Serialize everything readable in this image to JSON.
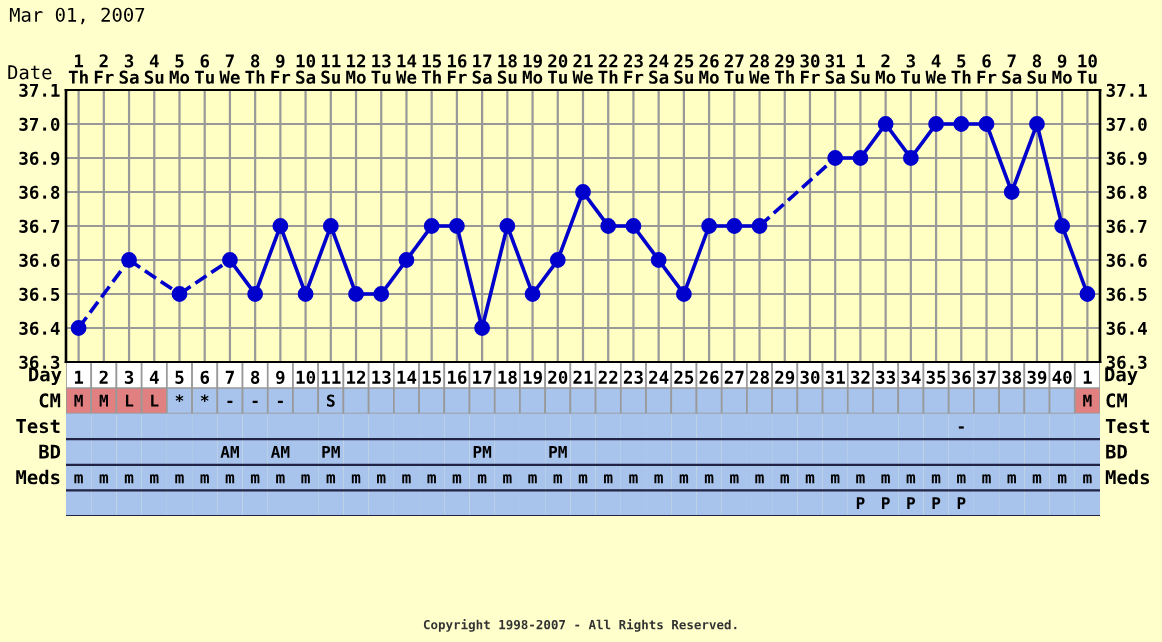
{
  "chart_data": [
    {
      "type": "line",
      "title": "Mar 01, 2007",
      "xlabel": "Day",
      "x2label": "Date",
      "categories": [
        "1",
        "2",
        "3",
        "4",
        "5",
        "6",
        "7",
        "8",
        "9",
        "10",
        "11",
        "12",
        "13",
        "14",
        "15",
        "16",
        "17",
        "18",
        "19",
        "20",
        "21",
        "22",
        "23",
        "24",
        "25",
        "26",
        "27",
        "28",
        "29",
        "30",
        "31",
        "32",
        "33",
        "34",
        "35",
        "36",
        "37",
        "38",
        "39",
        "40",
        "1"
      ],
      "x2lim": [
        "2007-02-28T12:00",
        "2007-04-10T12:00"
      ],
      "x2ticks": [
        {
          "value": "2007-03-01",
          "label": "1\nTh"
        },
        {
          "value": "2007-03-02",
          "label": "2\nFr"
        },
        {
          "value": "2007-03-03",
          "label": "3\nSa"
        },
        {
          "value": "2007-03-04",
          "label": "4\nSu"
        },
        {
          "value": "2007-03-05",
          "label": "5\nMo"
        },
        {
          "value": "2007-03-06",
          "label": "6\nTu"
        },
        {
          "value": "2007-03-07",
          "label": "7\nWe"
        },
        {
          "value": "2007-03-08",
          "label": "8\nTh"
        },
        {
          "value": "2007-03-09",
          "label": "9\nFr"
        },
        {
          "value": "2007-03-10",
          "label": "10\nSa"
        },
        {
          "value": "2007-03-11",
          "label": "11\nSu"
        },
        {
          "value": "2007-03-12",
          "label": "12\nMo"
        },
        {
          "value": "2007-03-13",
          "label": "13\nTu"
        },
        {
          "value": "2007-03-14",
          "label": "14\nWe"
        },
        {
          "value": "2007-03-15",
          "label": "15\nTh"
        },
        {
          "value": "2007-03-16",
          "label": "16\nFr"
        },
        {
          "value": "2007-03-17",
          "label": "17\nSa"
        },
        {
          "value": "2007-03-18",
          "label": "18\nSu"
        },
        {
          "value": "2007-03-19",
          "label": "19\nMo"
        },
        {
          "value": "2007-03-20",
          "label": "20\nTu"
        },
        {
          "value": "2007-03-21",
          "label": "21\nWe"
        },
        {
          "value": "2007-03-22",
          "label": "22\nTh"
        },
        {
          "value": "2007-03-23",
          "label": "23\nFr"
        },
        {
          "value": "2007-03-24",
          "label": "24\nSa"
        },
        {
          "value": "2007-03-25",
          "label": "25\nSu"
        },
        {
          "value": "2007-03-26",
          "label": "26\nMo"
        },
        {
          "value": "2007-03-27",
          "label": "27\nTu"
        },
        {
          "value": "2007-03-28",
          "label": "28\nWe"
        },
        {
          "value": "2007-03-29",
          "label": "29\nTh"
        },
        {
          "value": "2007-03-30",
          "label": "30\nFr"
        },
        {
          "value": "2007-03-31",
          "label": "31\nSa"
        },
        {
          "value": "2007-04-01",
          "label": "1\nSu"
        },
        {
          "value": "2007-04-02",
          "label": "2\nMo"
        },
        {
          "value": "2007-04-03",
          "label": "3\nTu"
        },
        {
          "value": "2007-04-04",
          "label": "4\nWe"
        },
        {
          "value": "2007-04-05",
          "label": "5\nTh"
        },
        {
          "value": "2007-04-06",
          "label": "6\nFr"
        },
        {
          "value": "2007-04-07",
          "label": "7\nSa"
        },
        {
          "value": "2007-04-08",
          "label": "8\nSu"
        },
        {
          "value": "2007-04-09",
          "label": "9\nMo"
        },
        {
          "value": "2007-04-10",
          "label": "10\nTu"
        }
      ],
      "series": [
        {
          "color": "#0000cc",
          "values": [
            36.4,
            null,
            36.6,
            null,
            36.5,
            null,
            36.6,
            36.5,
            36.7,
            36.5,
            36.7,
            36.5,
            36.5,
            36.6,
            36.7,
            36.7,
            36.4,
            36.7,
            36.5,
            36.6,
            36.8,
            36.7,
            36.7,
            36.6,
            36.5,
            36.7,
            36.7,
            36.7,
            null,
            null,
            36.9,
            36.9,
            37.0,
            36.9,
            37.0,
            37.0,
            37.0,
            36.8,
            37.0,
            36.7,
            36.5
          ]
        }
      ],
      "ylim": [
        36.3,
        37.1
      ],
      "yticks": [
        36.3,
        36.4,
        36.5,
        36.6,
        36.7,
        36.8,
        36.9,
        {
          "value": 37.0,
          "label": "37.0"
        },
        37.1
      ],
      "y2lim": [
        36.3,
        37.1
      ],
      "y2ticks": [
        36.3,
        36.4,
        36.5,
        36.6,
        36.7,
        36.8,
        36.9,
        {
          "value": 37.0,
          "label": "37.0"
        },
        37.1
      ],
      "grid": true,
      "marker": "circle",
      "line_style": "solid",
      "annotations": [
        "Copyright 1998-2007 - All Rights Reserved."
      ]
    },
    {
      "type": "other",
      "y_categories": [
        "CM",
        "Test",
        "BD",
        "Meds",
        null
      ],
      "cell_labels": [
        [
          "M",
          "M",
          "L",
          "L",
          "*",
          "*",
          "-",
          "-",
          "-",
          null,
          "S",
          null,
          null,
          null,
          null,
          null,
          null,
          null,
          null,
          null,
          null,
          null,
          null,
          null,
          null,
          null,
          null,
          null,
          null,
          null,
          null,
          null,
          null,
          null,
          null,
          null,
          null,
          null,
          null,
          null,
          "M"
        ],
        [
          null,
          null,
          null,
          null,
          null,
          null,
          null,
          null,
          null,
          null,
          null,
          null,
          null,
          null,
          null,
          null,
          null,
          null,
          null,
          null,
          null,
          null,
          null,
          null,
          null,
          null,
          null,
          null,
          null,
          null,
          null,
          null,
          null,
          null,
          null,
          "-",
          null,
          null,
          null,
          null,
          null
        ],
        [
          null,
          null,
          null,
          null,
          null,
          null,
          "AM",
          null,
          "AM",
          null,
          "PM",
          null,
          null,
          null,
          null,
          null,
          "PM",
          null,
          null,
          "PM",
          null,
          null,
          null,
          null,
          null,
          null,
          null,
          null,
          null,
          null,
          null,
          null,
          null,
          null,
          null,
          null,
          null,
          null,
          null,
          null,
          null
        ],
        [
          "m",
          "m",
          "m",
          "m",
          "m",
          "m",
          "m",
          "m",
          "m",
          "m",
          "m",
          "m",
          "m",
          "m",
          "m",
          "m",
          "m",
          "m",
          "m",
          "m",
          "m",
          "m",
          "m",
          "m",
          "m",
          "m",
          "m",
          "m",
          "m",
          "m",
          "m",
          "m",
          "m",
          "m",
          "m",
          "m",
          "m",
          "m",
          "m",
          "m",
          "m"
        ],
        [
          null,
          null,
          null,
          null,
          null,
          null,
          null,
          null,
          null,
          null,
          null,
          null,
          null,
          null,
          null,
          null,
          null,
          null,
          null,
          null,
          null,
          null,
          null,
          null,
          null,
          null,
          null,
          null,
          null,
          null,
          null,
          "P",
          "P",
          "P",
          "P",
          "P",
          null,
          null,
          null,
          null,
          null
        ]
      ],
      "colors": [
        [
          "#e08080",
          "#e08080",
          "#e08080",
          "#e08080",
          "#a8c4ec",
          "#a8c4ec",
          "#a8c4ec",
          "#a8c4ec",
          "#a8c4ec",
          "#a8c4ec",
          "#a8c4ec",
          "#a8c4ec",
          "#a8c4ec",
          "#a8c4ec",
          "#a8c4ec",
          "#a8c4ec",
          "#a8c4ec",
          "#a8c4ec",
          "#a8c4ec",
          "#a8c4ec",
          "#a8c4ec",
          "#a8c4ec",
          "#a8c4ec",
          "#a8c4ec",
          "#a8c4ec",
          "#a8c4ec",
          "#a8c4ec",
          "#a8c4ec",
          "#a8c4ec",
          "#a8c4ec",
          "#a8c4ec",
          "#a8c4ec",
          "#a8c4ec",
          "#a8c4ec",
          "#a8c4ec",
          "#a8c4ec",
          "#a8c4ec",
          "#a8c4ec",
          "#a8c4ec",
          "#a8c4ec",
          "#e08080"
        ],
        [
          "#a8c4ec",
          "#a8c4ec",
          "#a8c4ec",
          "#a8c4ec",
          "#a8c4ec",
          "#a8c4ec",
          "#a8c4ec",
          "#a8c4ec",
          "#a8c4ec",
          "#a8c4ec",
          "#a8c4ec",
          "#a8c4ec",
          "#a8c4ec",
          "#a8c4ec",
          "#a8c4ec",
          "#a8c4ec",
          "#a8c4ec",
          "#a8c4ec",
          "#a8c4ec",
          "#a8c4ec",
          "#a8c4ec",
          "#a8c4ec",
          "#a8c4ec",
          "#a8c4ec",
          "#a8c4ec",
          "#a8c4ec",
          "#a8c4ec",
          "#a8c4ec",
          "#a8c4ec",
          "#a8c4ec",
          "#a8c4ec",
          "#a8c4ec",
          "#a8c4ec",
          "#a8c4ec",
          "#a8c4ec",
          "#a8c4ec",
          "#a8c4ec",
          "#a8c4ec",
          "#a8c4ec",
          "#a8c4ec",
          "#a8c4ec"
        ],
        [
          "#a8c4ec",
          "#a8c4ec",
          "#a8c4ec",
          "#a8c4ec",
          "#a8c4ec",
          "#a8c4ec",
          "#a8c4ec",
          "#a8c4ec",
          "#a8c4ec",
          "#a8c4ec",
          "#a8c4ec",
          "#a8c4ec",
          "#a8c4ec",
          "#a8c4ec",
          "#a8c4ec",
          "#a8c4ec",
          "#a8c4ec",
          "#a8c4ec",
          "#a8c4ec",
          "#a8c4ec",
          "#a8c4ec",
          "#a8c4ec",
          "#a8c4ec",
          "#a8c4ec",
          "#a8c4ec",
          "#a8c4ec",
          "#a8c4ec",
          "#a8c4ec",
          "#a8c4ec",
          "#a8c4ec",
          "#a8c4ec",
          "#a8c4ec",
          "#a8c4ec",
          "#a8c4ec",
          "#a8c4ec",
          "#a8c4ec",
          "#a8c4ec",
          "#a8c4ec",
          "#a8c4ec",
          "#a8c4ec",
          "#a8c4ec"
        ],
        [
          "#a8c4ec",
          "#a8c4ec",
          "#a8c4ec",
          "#a8c4ec",
          "#a8c4ec",
          "#a8c4ec",
          "#a8c4ec",
          "#a8c4ec",
          "#a8c4ec",
          "#a8c4ec",
          "#a8c4ec",
          "#a8c4ec",
          "#a8c4ec",
          "#a8c4ec",
          "#a8c4ec",
          "#a8c4ec",
          "#a8c4ec",
          "#a8c4ec",
          "#a8c4ec",
          "#a8c4ec",
          "#a8c4ec",
          "#a8c4ec",
          "#a8c4ec",
          "#a8c4ec",
          "#a8c4ec",
          "#a8c4ec",
          "#a8c4ec",
          "#a8c4ec",
          "#a8c4ec",
          "#a8c4ec",
          "#a8c4ec",
          "#a8c4ec",
          "#a8c4ec",
          "#a8c4ec",
          "#a8c4ec",
          "#a8c4ec",
          "#a8c4ec",
          "#a8c4ec",
          "#a8c4ec",
          "#a8c4ec",
          "#a8c4ec"
        ],
        [
          "#a8c4ec",
          "#a8c4ec",
          "#a8c4ec",
          "#a8c4ec",
          "#a8c4ec",
          "#a8c4ec",
          "#a8c4ec",
          "#a8c4ec",
          "#a8c4ec",
          "#a8c4ec",
          "#a8c4ec",
          "#a8c4ec",
          "#a8c4ec",
          "#a8c4ec",
          "#a8c4ec",
          "#a8c4ec",
          "#a8c4ec",
          "#a8c4ec",
          "#a8c4ec",
          "#a8c4ec",
          "#a8c4ec",
          "#a8c4ec",
          "#a8c4ec",
          "#a8c4ec",
          "#a8c4ec",
          "#a8c4ec",
          "#a8c4ec",
          "#a8c4ec",
          "#a8c4ec",
          "#a8c4ec",
          "#a8c4ec",
          "#a8c4ec",
          "#a8c4ec",
          "#a8c4ec",
          "#a8c4ec",
          "#a8c4ec",
          "#a8c4ec",
          "#a8c4ec",
          "#a8c4ec",
          "#a8c4ec",
          "#a8c4ec"
        ]
      ]
    }
  ]
}
